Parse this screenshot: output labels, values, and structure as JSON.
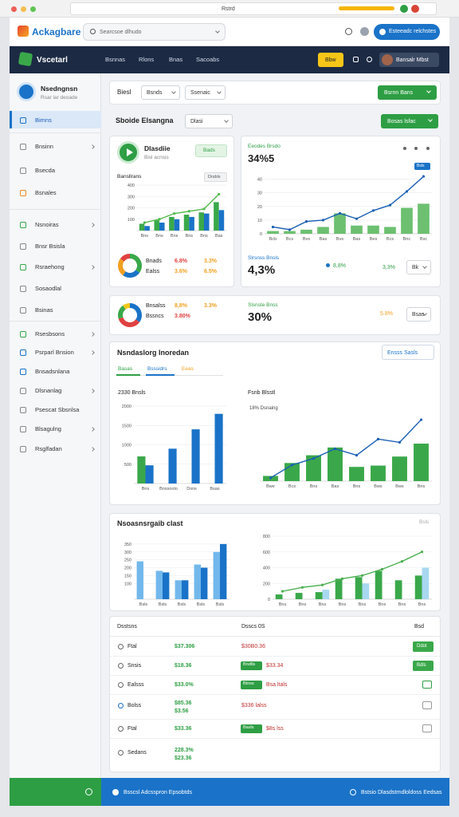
{
  "browser": {
    "title": "Rstrd"
  },
  "header": {
    "logo": "Ackagbare",
    "search": "Searcsoe dlhudo",
    "button": "Esteeadc relchstes"
  },
  "nav": {
    "brand": "Vscetarl",
    "items": [
      "Bsnnas",
      "Rlons",
      "Bnas",
      "Sacoabs"
    ],
    "cta": "Bbw",
    "user": "Bansalr Mbst"
  },
  "sidebar": {
    "profile": {
      "name": "Nsedngnsn",
      "subtitle": "Rsar lar deoade"
    },
    "items": [
      {
        "label": "Bimns",
        "active": true
      },
      {
        "label": "Bnsinn",
        "chevron": true
      },
      {
        "label": "Bsecda"
      },
      {
        "label": "Bsnales"
      },
      {
        "label": "Nsnoiras",
        "chevron": true
      },
      {
        "label": "Bnsr Bsisla"
      },
      {
        "label": "Rsraehong",
        "chevron": true
      },
      {
        "label": "Sosaodlal"
      },
      {
        "label": "Bsinas"
      },
      {
        "label": "Rsesbsons",
        "chevron": true
      },
      {
        "label": "Psrparl Bnsion",
        "chevron": true
      },
      {
        "label": "Bnsadsnlana"
      },
      {
        "label": "Dlsnanlag",
        "chevron": true
      },
      {
        "label": "Psescat Sbsnlsa"
      },
      {
        "label": "Blsagulng",
        "chevron": true
      },
      {
        "label": "Rsglfadan",
        "chevron": true
      }
    ]
  },
  "toolbar": {
    "label": "Biesl",
    "filters": [
      "Bsnds",
      "Ssenaic"
    ],
    "button": "Bsrnn Bans"
  },
  "overview": {
    "title": "Sboide Elsangna",
    "filter": "Dlasi",
    "button": "Bosas lsfac"
  },
  "summary_card": {
    "title": "Dlasdiie",
    "subtitle": "Bisl acnsis",
    "badge": "Bads",
    "chart_title": "Bansllrans",
    "chart_tag": "Drsbls",
    "rows": [
      [
        "Bnads",
        "6.8%",
        "3.3%"
      ],
      [
        "Ealss",
        "3.6%",
        "6.5%"
      ]
    ]
  },
  "trend_card": {
    "label": "Eeodes Brsdo",
    "value": "34%5",
    "badge": "Bsls",
    "footer_label": "Slrsnss Bnsls",
    "footer_value": "4,3%",
    "change": "8,8%",
    "change2": "3,3%",
    "filter": "Bk"
  },
  "split_card": {
    "rows": [
      [
        "Bnsalss",
        "8,8%",
        "3.3%"
      ],
      [
        "Bssncs",
        "3.80%"
      ]
    ],
    "label": "Slsnste Bnss",
    "value": "30%",
    "change": "5.8%",
    "filter": "Bsas"
  },
  "insights": {
    "title": "Nsndaslorg Inoredan",
    "button": "Ensss Sasls",
    "tabs": [
      "Basas",
      "Bsssidrs",
      "Eeas"
    ],
    "left_title": "2330 Bnsls",
    "right_title": "Fsnb Blsstl",
    "right_note": "18% Dsnaing"
  },
  "breakdown": {
    "title": "Nsoasnsrgaib clast",
    "note": "Bsls"
  },
  "table": {
    "headers": [
      "Dsstsns",
      "Dsscs 0S",
      "Bsd"
    ],
    "rows": [
      {
        "name": "Ftal",
        "value": "$37.306",
        "detail": "$30B0.36",
        "action": "Ddot"
      },
      {
        "name": "Snsis",
        "value": "$18.36",
        "tag": "Bndtls",
        "detail": "$33.34",
        "action": "Bdls"
      },
      {
        "name": "Ealsss",
        "value": "$33.0%",
        "tag": "Btnss",
        "detail": "Bsa ltals"
      },
      {
        "name": "Bolss",
        "value": "$85.36",
        "value2": "$3.56",
        "detail": "$336 lalss"
      },
      {
        "name": "Ftal",
        "value": "$33.36",
        "tag": "Basls",
        "detail": "$8s lss"
      },
      {
        "name": "Sedans",
        "value": "228.3%",
        "value2": "$23.36"
      }
    ]
  },
  "footer": {
    "left": "Bsscsl Adcsspron Epsobtds",
    "right": "Bstsio Dlasdstrndloldoss Eedsas"
  },
  "chart_data": [
    {
      "type": "combo",
      "categories": [
        "Bns",
        "Bns",
        "Bns",
        "Bns",
        "Bns",
        "Bas"
      ],
      "ylim": [
        0,
        400
      ],
      "yticks": [
        100,
        200,
        300,
        400
      ],
      "series": [
        {
          "type": "bar",
          "color": "#3aa84a",
          "values": [
            60,
            90,
            120,
            140,
            160,
            250
          ]
        },
        {
          "type": "bar",
          "color": "#1a73c8",
          "values": [
            40,
            70,
            100,
            120,
            150,
            180
          ]
        },
        {
          "type": "line",
          "color": "#52b94a",
          "values": [
            70,
            100,
            150,
            170,
            190,
            320
          ]
        }
      ]
    },
    {
      "type": "combo",
      "categories": [
        "Bcb",
        "Bcs",
        "Bvs",
        "Bas",
        "Bvs",
        "Bas",
        "Bes",
        "Bcs",
        "Bnc",
        "Bsc"
      ],
      "ylim": [
        0,
        45
      ],
      "yticks": [
        0,
        10,
        20,
        30,
        40
      ],
      "series": [
        {
          "type": "bar",
          "color": "#6cc070",
          "values": [
            2,
            2,
            3,
            5,
            15,
            6,
            6,
            5,
            19,
            22
          ]
        },
        {
          "type": "line",
          "color": "#1a5fb4",
          "values": [
            5,
            3,
            9,
            10,
            15,
            11,
            17,
            21,
            31,
            42
          ]
        }
      ]
    },
    {
      "type": "donut",
      "values": [
        35,
        25,
        25,
        15
      ],
      "colors": [
        "#3aa84a",
        "#1a73c8",
        "#f0a020",
        "#e04040"
      ]
    },
    {
      "type": "donut",
      "values": [
        35,
        35,
        20,
        10
      ],
      "colors": [
        "#1a73c8",
        "#e04040",
        "#3aa84a",
        "#f5c518"
      ]
    },
    {
      "type": "combo",
      "categories": [
        "Bns",
        "Bnssoolo",
        "Dsns",
        "Bsas"
      ],
      "ylim": [
        0,
        2000
      ],
      "yticks": [
        500,
        1000,
        1500,
        2000
      ],
      "series": [
        {
          "type": "bar",
          "color": "#3aa84a",
          "values": [
            700,
            null,
            null,
            null
          ]
        },
        {
          "type": "bar",
          "color": "#1a73c8",
          "values": [
            470,
            900,
            1400,
            1800
          ]
        }
      ]
    },
    {
      "type": "combo",
      "categories": [
        "Bwe",
        "Bcs",
        "Bns",
        "Bas",
        "Bns",
        "Bws",
        "Bws",
        "Bns"
      ],
      "ylim": [
        0,
        100
      ],
      "series": [
        {
          "type": "bar",
          "color": "#3aa84a",
          "values": [
            8,
            28,
            40,
            52,
            22,
            24,
            38,
            58
          ]
        },
        {
          "type": "line",
          "color": "#1a5fb4",
          "values": [
            5,
            25,
            35,
            50,
            40,
            65,
            60,
            95
          ]
        }
      ]
    },
    {
      "type": "combo",
      "categories": [
        "Bsls",
        "Bsls",
        "Bsls",
        "Bsls",
        "Bsls"
      ],
      "ylim": [
        0,
        400
      ],
      "yticks": [
        100,
        150,
        200,
        250,
        300,
        350
      ],
      "series": [
        {
          "type": "bar",
          "color": "#72b8ec",
          "values": [
            240,
            180,
            120,
            220,
            300
          ]
        },
        {
          "type": "bar",
          "color": "#1a73c8",
          "values": [
            null,
            170,
            120,
            200,
            350
          ]
        }
      ]
    },
    {
      "type": "combo",
      "categories": [
        "Bns",
        "Bns",
        "Bns",
        "Bns",
        "Bns",
        "Bns",
        "Bns",
        "Bns"
      ],
      "ylim": [
        0,
        800
      ],
      "yticks": [
        0,
        200,
        400,
        600,
        800
      ],
      "series": [
        {
          "type": "bar",
          "color": "#3aa84a",
          "values": [
            60,
            80,
            90,
            260,
            280,
            360,
            240,
            300
          ]
        },
        {
          "type": "bar",
          "color": "#a8d8f0",
          "values": [
            null,
            null,
            120,
            null,
            200,
            null,
            null,
            400
          ]
        },
        {
          "type": "line",
          "color": "#4caf50",
          "values": [
            100,
            150,
            180,
            260,
            300,
            380,
            480,
            600
          ]
        }
      ]
    }
  ]
}
